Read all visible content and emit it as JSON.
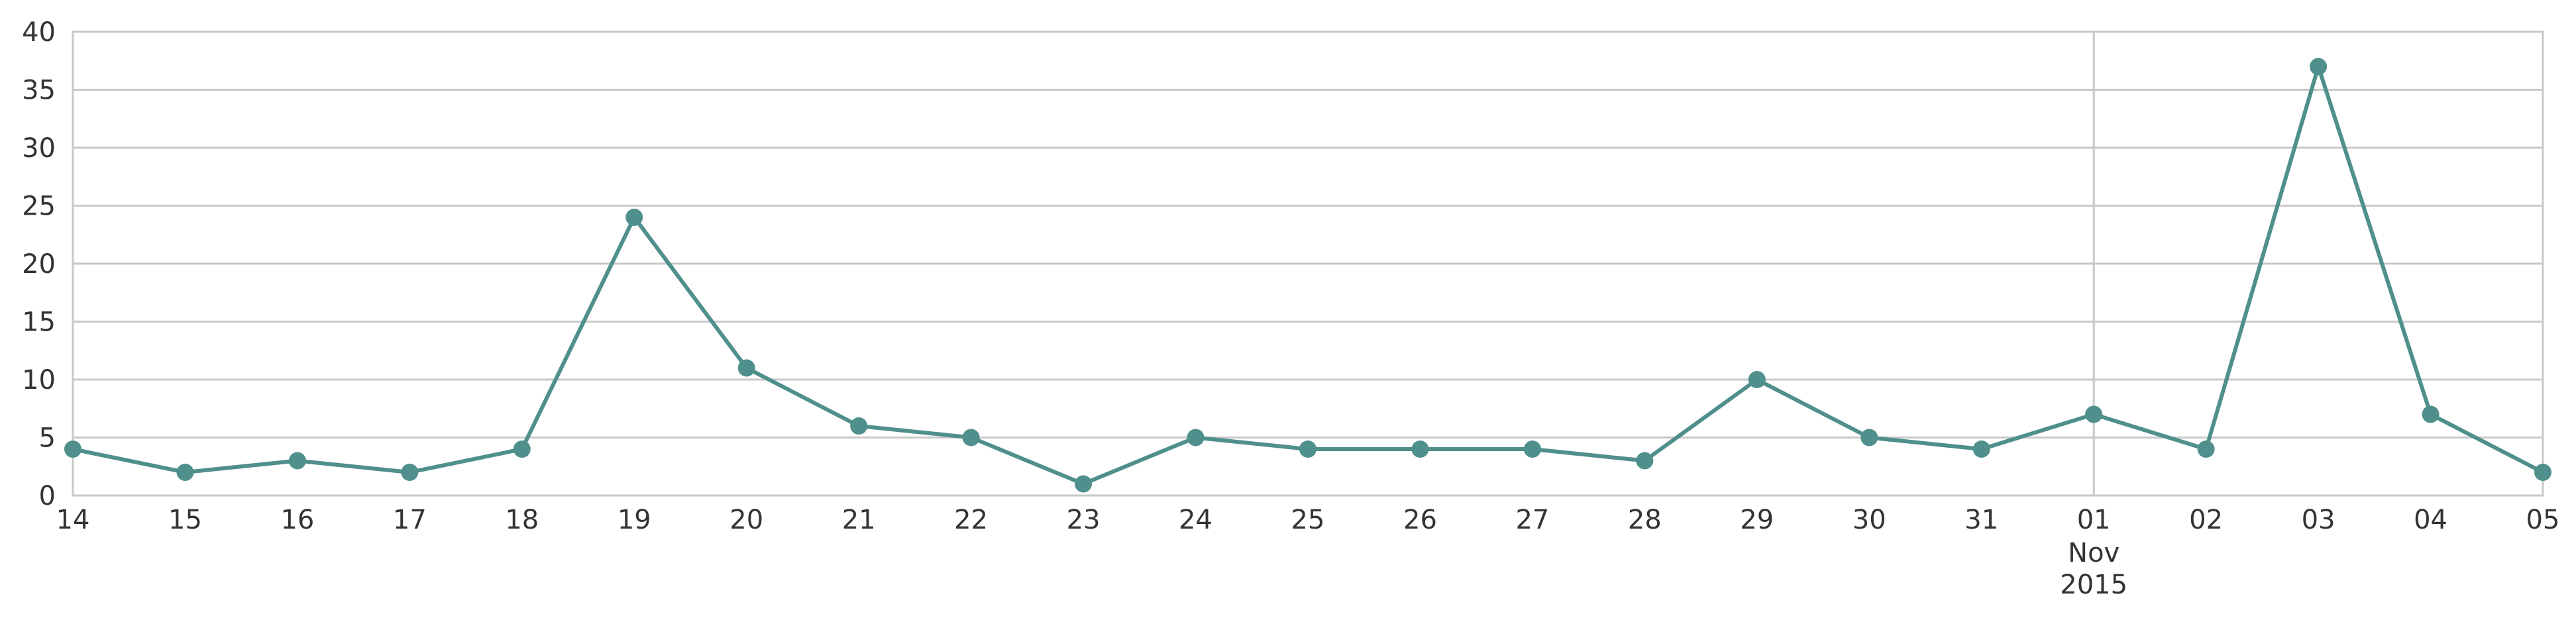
{
  "chart_data": {
    "type": "line",
    "x": [
      "2015-10-14",
      "2015-10-15",
      "2015-10-16",
      "2015-10-17",
      "2015-10-18",
      "2015-10-19",
      "2015-10-20",
      "2015-10-21",
      "2015-10-22",
      "2015-10-23",
      "2015-10-24",
      "2015-10-25",
      "2015-10-26",
      "2015-10-27",
      "2015-10-28",
      "2015-10-29",
      "2015-10-30",
      "2015-10-31",
      "2015-11-01",
      "2015-11-02",
      "2015-11-03",
      "2015-11-04",
      "2015-11-05"
    ],
    "x_tick_labels": [
      "14",
      "15",
      "16",
      "17",
      "18",
      "19",
      "20",
      "21",
      "22",
      "23",
      "24",
      "25",
      "26",
      "27",
      "28",
      "29",
      "30",
      "31",
      "01",
      "02",
      "03",
      "04",
      "05"
    ],
    "month_label": {
      "tick": "01",
      "lines": [
        "Nov",
        "2015"
      ]
    },
    "series": [
      {
        "values": [
          4,
          2,
          3,
          2,
          4,
          24,
          11,
          6,
          5,
          1,
          5,
          4,
          4,
          4,
          3,
          10,
          5,
          4,
          7,
          4,
          37,
          7,
          2
        ]
      }
    ],
    "ylim": [
      0,
      40
    ],
    "y_ticks": [
      0,
      5,
      10,
      15,
      20,
      25,
      30,
      35,
      40
    ],
    "title": "",
    "xlabel": "",
    "ylabel": "",
    "grid": "horizontal",
    "color": "#4f8f8c",
    "grid_color": "#c8c8c8"
  }
}
